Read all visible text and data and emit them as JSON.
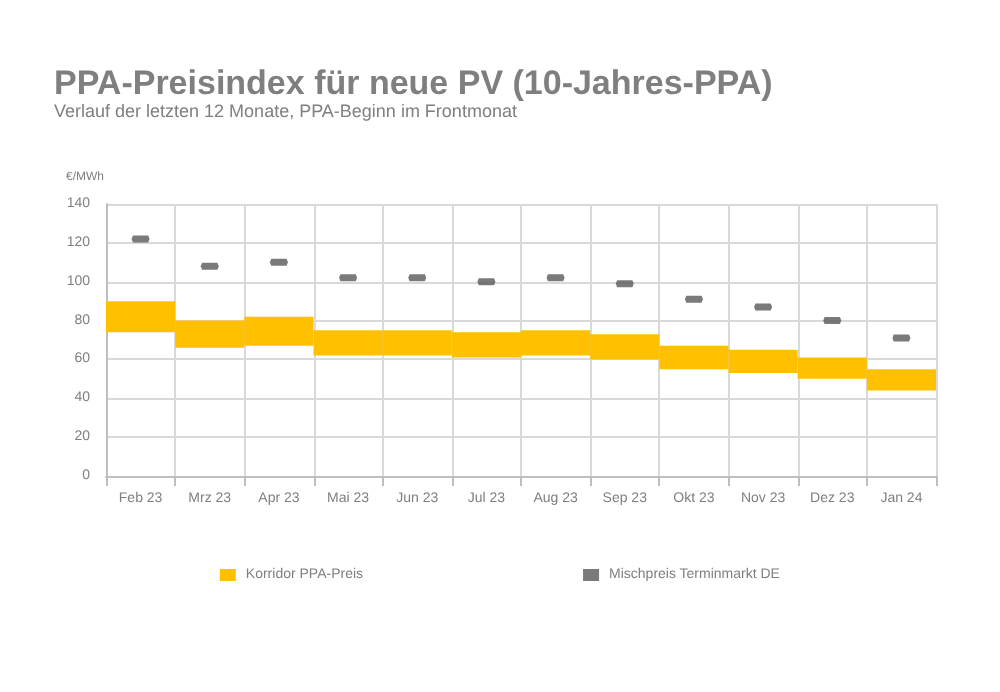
{
  "chart_data": {
    "type": "bar",
    "title": "PPA-Preisindex für neue PV (10-Jahres-PPA)",
    "subtitle": "Verlauf der letzten 12 Monate, PPA-Beginn im Frontmonat",
    "ylabel": "€/MWh",
    "categories": [
      "Feb 23",
      "Mrz 23",
      "Apr 23",
      "Mai 23",
      "Jun 23",
      "Jul 23",
      "Aug 23",
      "Sep 23",
      "Okt 23",
      "Nov 23",
      "Dez 23",
      "Jan 24"
    ],
    "series": [
      {
        "name": "Korridor PPA-Preis",
        "color": "#ffc000",
        "base": [
          74,
          66,
          67,
          62,
          62,
          61,
          62,
          60,
          55,
          53,
          50,
          44
        ],
        "values": [
          16,
          14,
          15,
          13,
          13,
          13,
          13,
          13,
          12,
          12,
          11,
          11
        ]
      },
      {
        "name": "Mischpreis Terminmarkt DE",
        "type": "scatter",
        "color": "#595959",
        "values": [
          122,
          108,
          110,
          102,
          102,
          100,
          102,
          99,
          91,
          87,
          80,
          71
        ]
      }
    ],
    "ylim": [
      0,
      140
    ],
    "yticks": [
      0,
      20,
      40,
      60,
      80,
      100,
      120,
      140
    ],
    "grid": true,
    "legend": "bottom"
  }
}
